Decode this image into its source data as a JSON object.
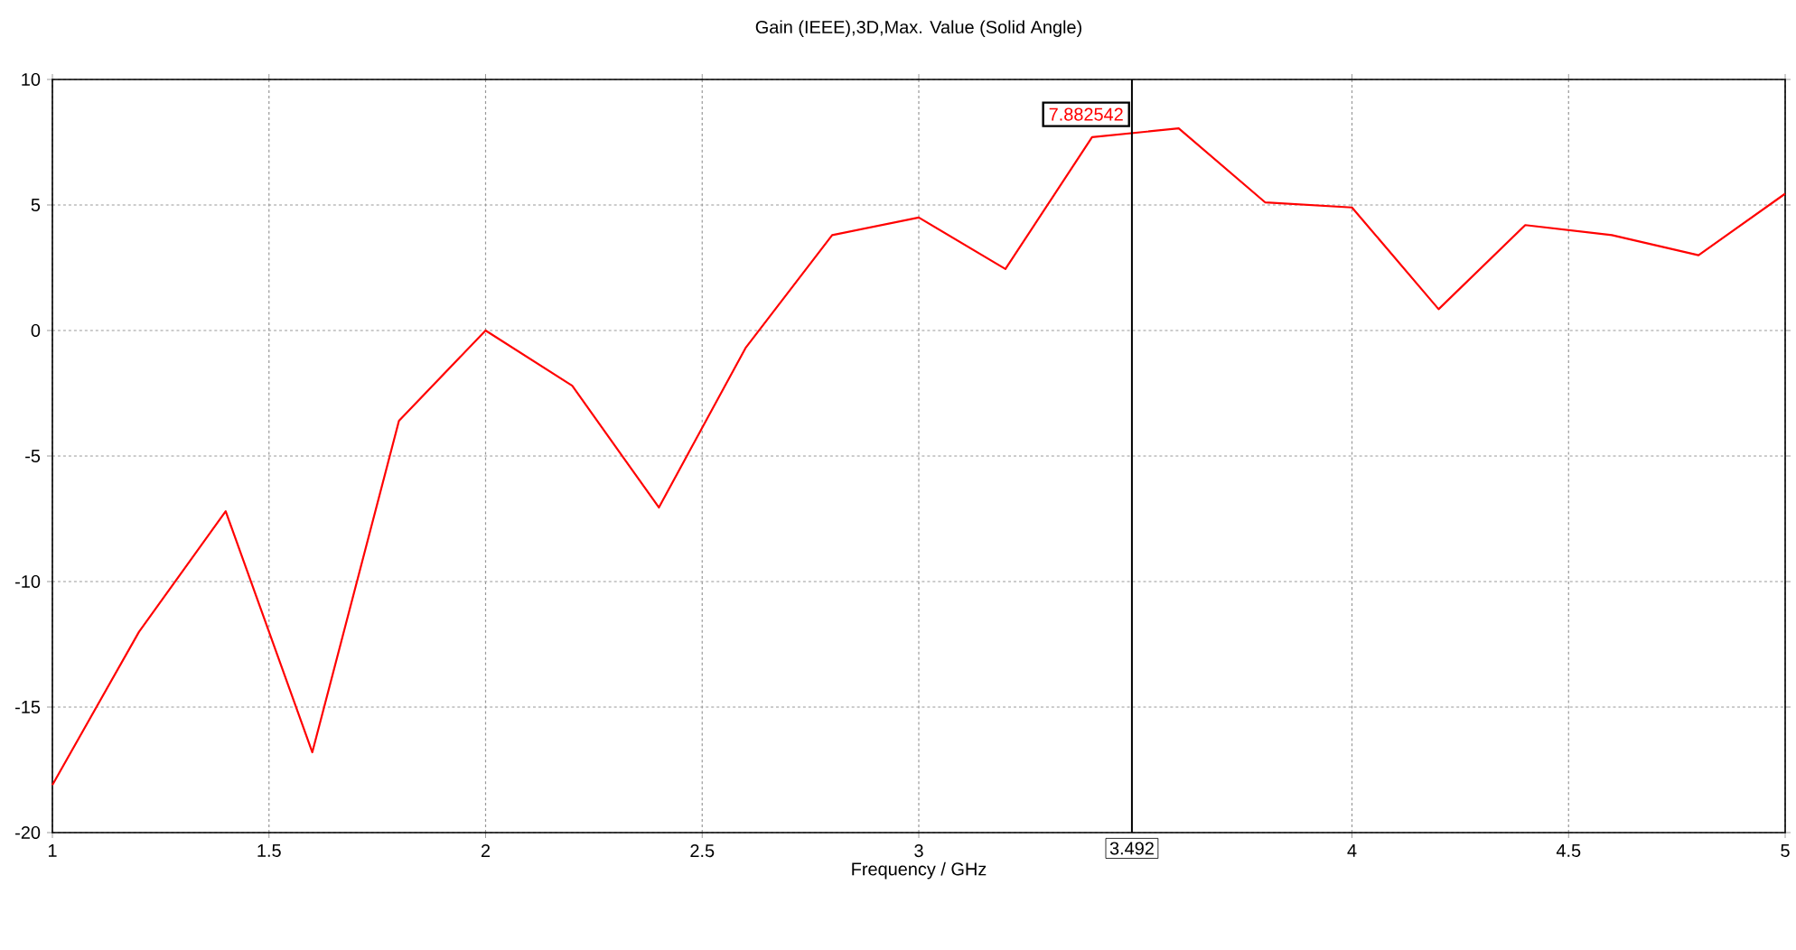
{
  "chart_data": {
    "type": "line",
    "title": "Gain (IEEE),3D,Max. Value (Solid Angle)",
    "xlabel": "Frequency / GHz",
    "x": [
      1.0,
      1.2,
      1.4,
      1.6,
      1.8,
      2.0,
      2.2,
      2.4,
      2.6,
      2.8,
      3.0,
      3.2,
      3.4,
      3.6,
      3.8,
      4.0,
      4.2,
      4.4,
      4.6,
      4.8,
      5.0
    ],
    "series": [
      {
        "color": "#ff0000",
        "values": [
          -18.1,
          -12.0,
          -7.2,
          -16.8,
          -3.6,
          0.0,
          -2.2,
          -7.05,
          -0.7,
          3.8,
          4.5,
          2.45,
          7.7,
          8.05,
          5.1,
          4.9,
          0.85,
          4.2,
          3.8,
          3.0,
          5.45
        ]
      }
    ],
    "xlim": [
      1,
      5
    ],
    "ylim": [
      -20,
      10
    ],
    "xticks": [
      1,
      1.5,
      2,
      2.5,
      3,
      4,
      4.5,
      5
    ],
    "yticks": [
      -20,
      -15,
      -10,
      -5,
      0,
      5,
      10
    ],
    "grid": true,
    "marker": "none",
    "line_style": "solid",
    "ref_lines": [
      {
        "axis": "x",
        "value": 3.492,
        "label": "3.492",
        "color": "#000000"
      }
    ],
    "annotations": [
      {
        "text": "7.882542",
        "x": 3.492,
        "y": 7.882542
      }
    ]
  }
}
